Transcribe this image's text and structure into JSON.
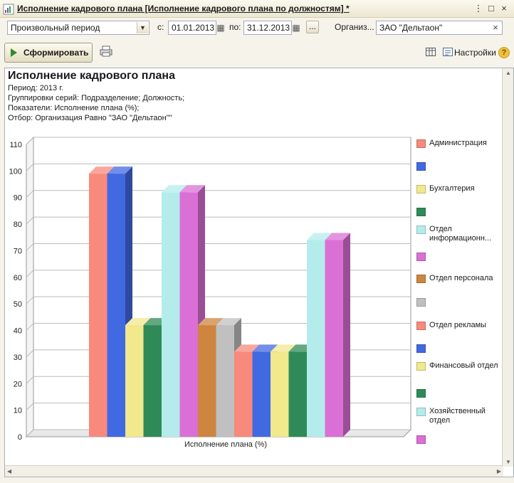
{
  "window": {
    "title": "Исполнение кадрового плана [Исполнение кадрового плана по должностям] *"
  },
  "filters": {
    "period_type": "Произвольный период",
    "from_label": "с:",
    "from_value": "01.01.2013",
    "to_label": "по:",
    "to_value": "31.12.2013",
    "dots_label": "...",
    "org_label": "Организ...",
    "org_value": "ЗАО \"Дельтаон\""
  },
  "toolbar": {
    "generate_label": "Сформировать",
    "settings_label": "Настройки",
    "help_label": "?"
  },
  "report": {
    "title": "Исполнение кадрового плана",
    "period": "Период: 2013 г.",
    "groupings": "Группировки серий: Подразделение; Должность;",
    "indicators": "Показатели: Исполнение плана (%);",
    "filter": "Отбор: Организация Равно \"ЗАО \"Дельтаон\"\""
  },
  "chart_data": {
    "type": "bar",
    "xlabel": "Исполнение плана (%)",
    "ylim": [
      0,
      110
    ],
    "yticks": [
      0,
      10,
      20,
      30,
      40,
      50,
      60,
      70,
      80,
      90,
      100,
      110
    ],
    "series": [
      {
        "name": "Администрация",
        "value": 99,
        "color": "#f78a7c"
      },
      {
        "name": "",
        "value": 99,
        "color": "#4169e1"
      },
      {
        "name": "Бухгалтерия",
        "value": 42,
        "color": "#f2e88c"
      },
      {
        "name": "",
        "value": 42,
        "color": "#2e8b57"
      },
      {
        "name": "Отдел информационн...",
        "value": 92,
        "color": "#b4ecec"
      },
      {
        "name": "",
        "value": 92,
        "color": "#da70d6"
      },
      {
        "name": "Отдел персонала",
        "value": 42,
        "color": "#cd853f"
      },
      {
        "name": "",
        "value": 42,
        "color": "#c0c0c0"
      },
      {
        "name": "Отдел рекламы",
        "value": 32,
        "color": "#f78a7c"
      },
      {
        "name": "",
        "value": 32,
        "color": "#4169e1"
      },
      {
        "name": "Финансовый отдел",
        "value": 32,
        "color": "#f2e88c"
      },
      {
        "name": "",
        "value": 32,
        "color": "#2e8b57"
      },
      {
        "name": "Хозяйственный отдел",
        "value": 74,
        "color": "#b4ecec"
      },
      {
        "name": "",
        "value": 74,
        "color": "#da70d6"
      }
    ],
    "legend_position": "right",
    "grid": true
  }
}
